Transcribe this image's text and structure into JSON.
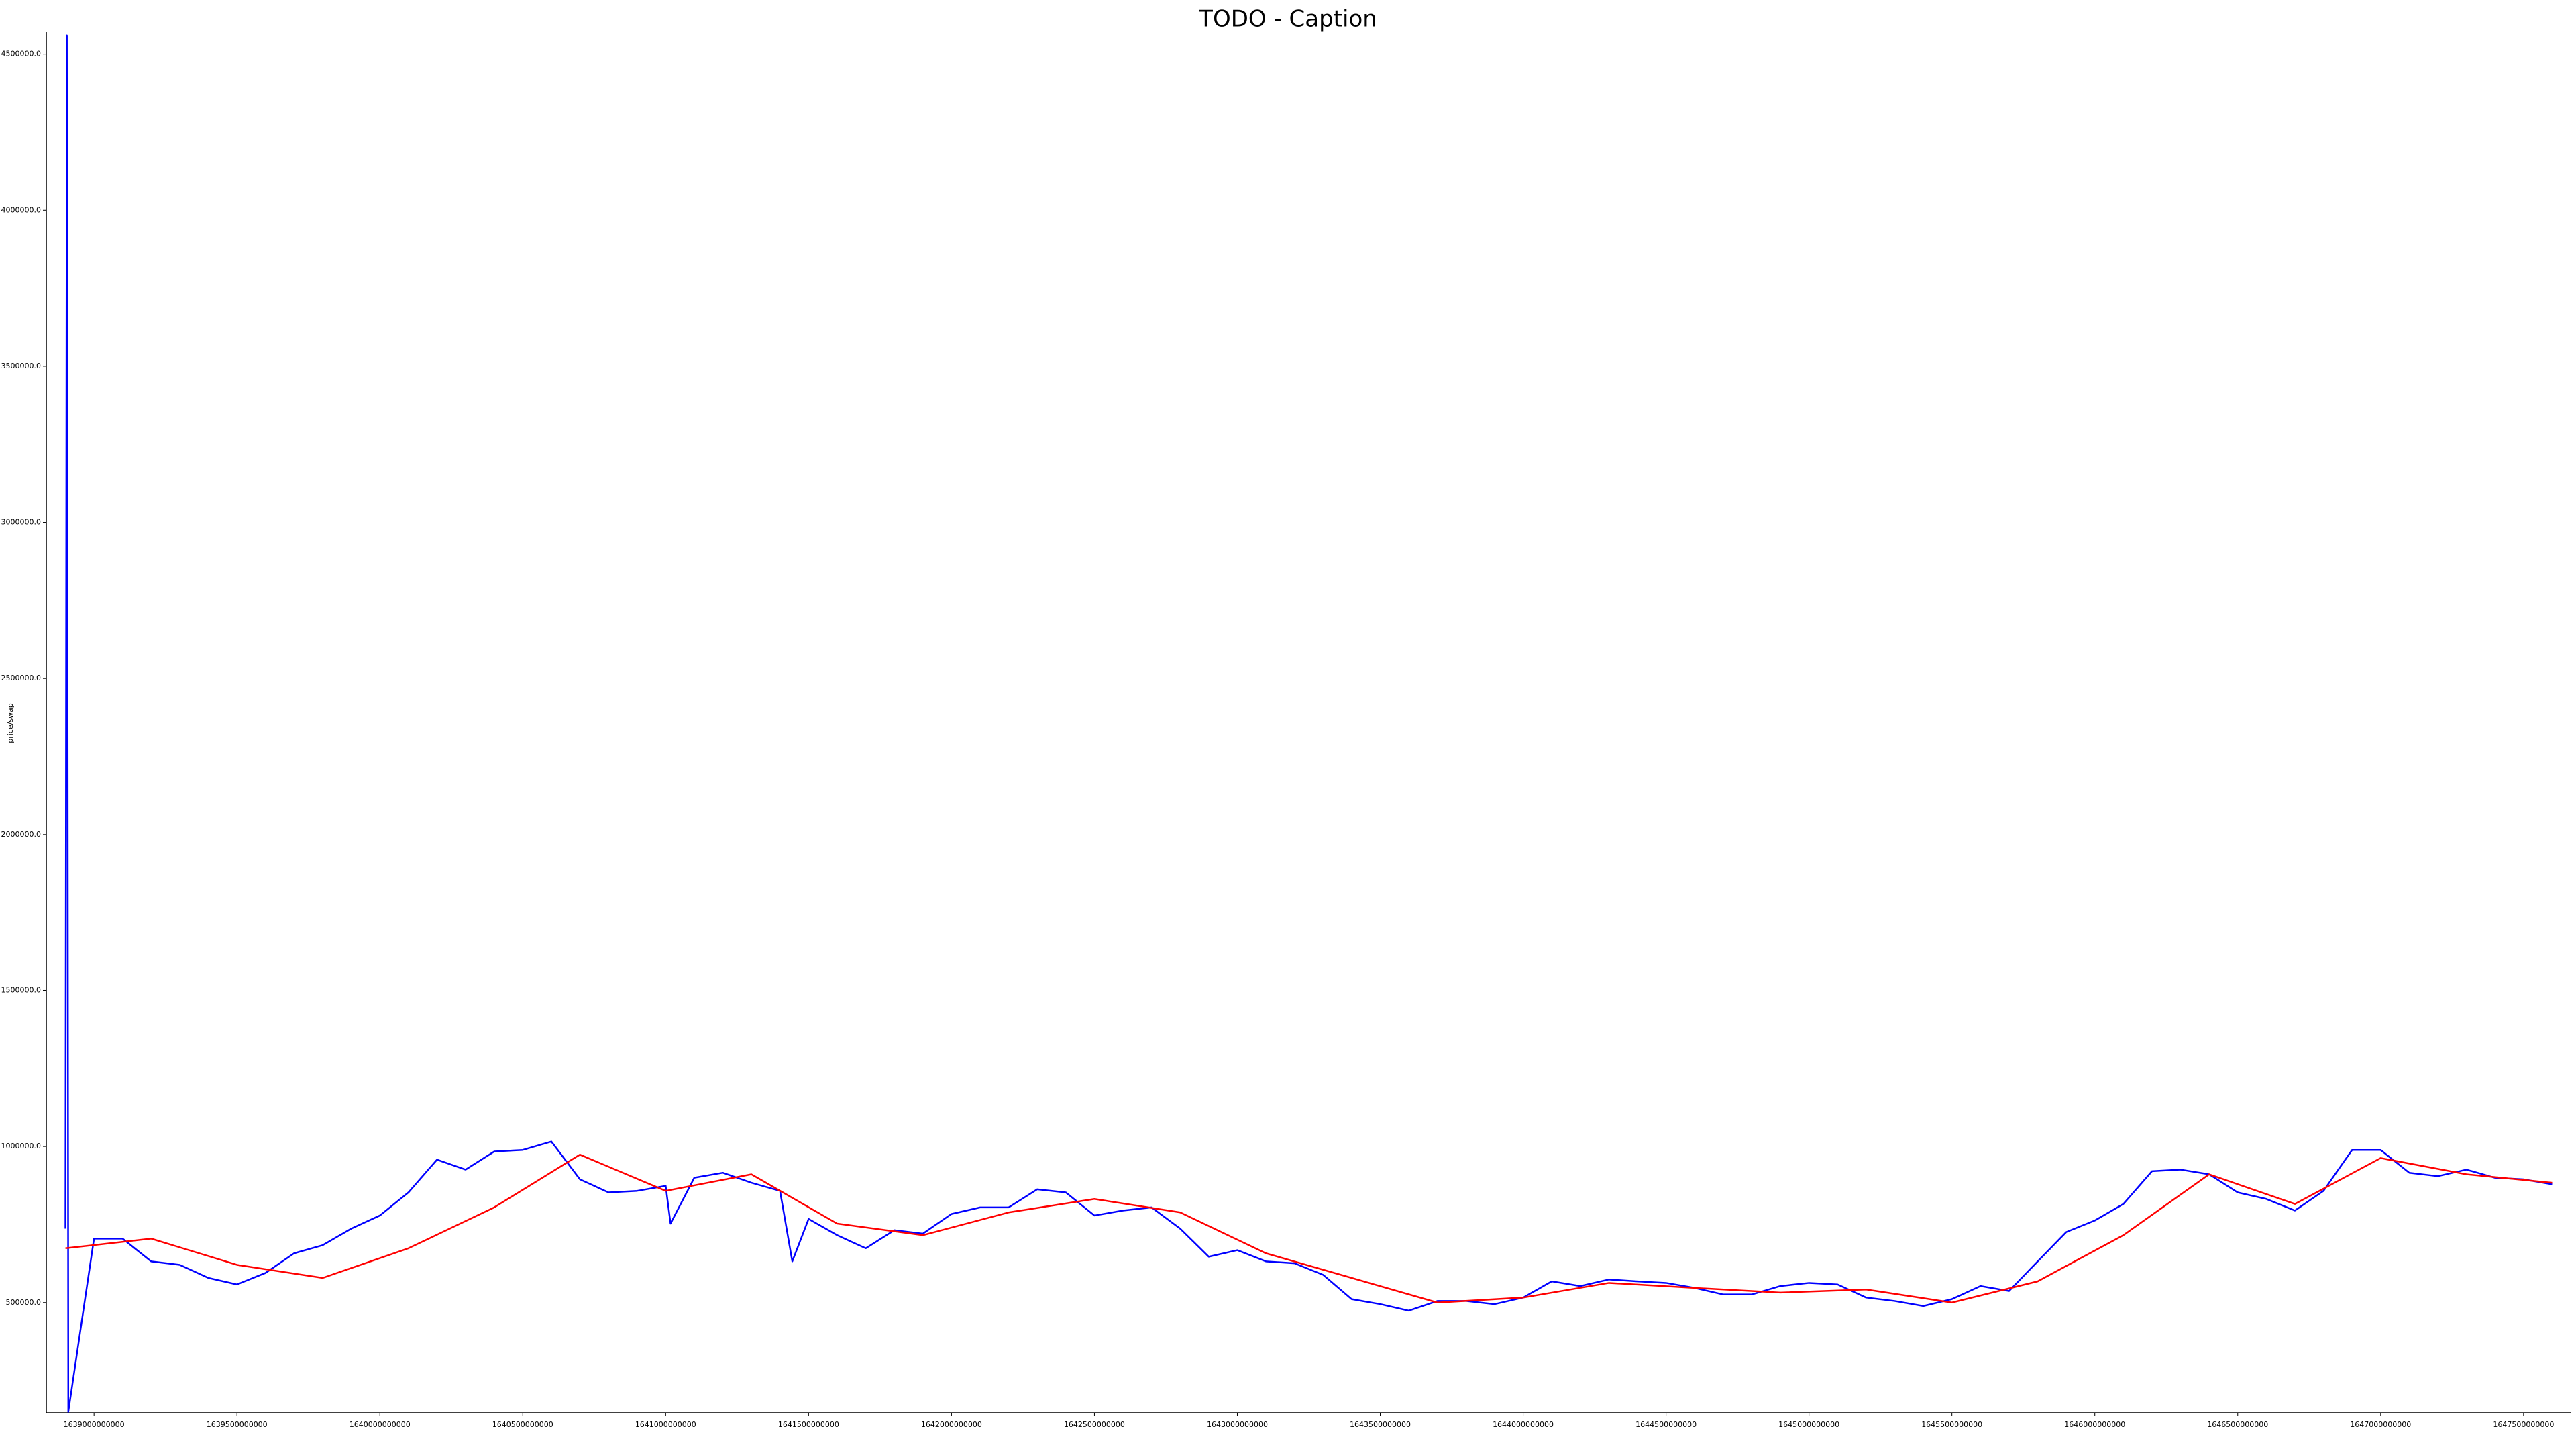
{
  "chart_data": {
    "type": "line",
    "title": "TODO - Caption",
    "ylabel": "price/swap",
    "xlim": [
      1638833000000,
      1647667000000
    ],
    "xticks": [
      1639000000000,
      1639500000000,
      1640000000000,
      1640500000000,
      1641000000000,
      1641500000000,
      1642000000000,
      1642500000000,
      1643000000000,
      1643500000000,
      1644000000000,
      1644500000000,
      1645000000000,
      1645500000000,
      1646000000000,
      1646500000000,
      1647000000000,
      1647500000000
    ],
    "ylim": [
      147000,
      4568000
    ],
    "yticks": [
      {
        "value": 500000,
        "label": "500000.0"
      },
      {
        "value": 1000000,
        "label": "1000000.0"
      },
      {
        "value": 1500000,
        "label": "1500000.0"
      },
      {
        "value": 2000000,
        "label": "2000000.0"
      },
      {
        "value": 2500000,
        "label": "2500000.0"
      },
      {
        "value": 3000000,
        "label": "3000000.0"
      },
      {
        "value": 3500000,
        "label": "3500000.0"
      },
      {
        "value": 4000000,
        "label": "4000000.0"
      },
      {
        "value": 4500000,
        "label": "4500000.0"
      }
    ],
    "grid": false,
    "series": [
      {
        "color": "#0000ff",
        "x": [
          1638900000000,
          1638905000000,
          1638910000000,
          1639000000000,
          1639100000000,
          1639200000000,
          1639300000000,
          1639400000000,
          1639500000000,
          1639600000000,
          1639700000000,
          1639800000000,
          1639900000000,
          1640000000000,
          1640100000000,
          1640200000000,
          1640300000000,
          1640400000000,
          1640500000000,
          1640600000000,
          1640700000000,
          1640800000000,
          1640900000000,
          1641000000000,
          1641017000000,
          1641100000000,
          1641200000000,
          1641300000000,
          1641400000000,
          1641443000000,
          1641500000000,
          1641600000000,
          1641700000000,
          1641800000000,
          1641900000000,
          1642000000000,
          1642100000000,
          1642200000000,
          1642300000000,
          1642400000000,
          1642500000000,
          1642600000000,
          1642700000000,
          1642800000000,
          1642900000000,
          1643000000000,
          1643100000000,
          1643200000000,
          1643300000000,
          1643400000000,
          1643500000000,
          1643600000000,
          1643700000000,
          1643800000000,
          1643900000000,
          1644000000000,
          1644100000000,
          1644200000000,
          1644300000000,
          1644400000000,
          1644500000000,
          1644600000000,
          1644700000000,
          1644800000000,
          1644900000000,
          1645000000000,
          1645100000000,
          1645200000000,
          1645300000000,
          1645400000000,
          1645500000000,
          1645600000000,
          1645700000000,
          1645800000000,
          1645900000000,
          1646000000000,
          1646100000000,
          1646200000000,
          1646300000000,
          1646400000000,
          1646500000000,
          1646600000000,
          1646700000000,
          1646800000000,
          1646900000000,
          1647000000000,
          1647100000000,
          1647200000000,
          1647300000000,
          1647400000000,
          1647500000000,
          1647600000000
        ],
        "values": [
          737000,
          4560000,
          150000,
          705000,
          705000,
          632000,
          621000,
          579000,
          558000,
          595000,
          658000,
          684000,
          737000,
          779000,
          853000,
          958000,
          926000,
          984000,
          989000,
          1016000,
          895000,
          853000,
          858000,
          874000,
          753000,
          900000,
          916000,
          884000,
          858000,
          632000,
          768000,
          716000,
          674000,
          732000,
          721000,
          784000,
          805000,
          805000,
          863000,
          853000,
          779000,
          795000,
          805000,
          737000,
          647000,
          668000,
          632000,
          626000,
          589000,
          511000,
          495000,
          474000,
          505000,
          505000,
          495000,
          516000,
          568000,
          553000,
          574000,
          568000,
          563000,
          547000,
          526000,
          526000,
          553000,
          563000,
          558000,
          516000,
          505000,
          489000,
          511000,
          553000,
          537000,
          632000,
          726000,
          763000,
          816000,
          921000,
          926000,
          911000,
          853000,
          832000,
          795000,
          858000,
          989000,
          989000,
          916000,
          905000,
          926000,
          900000,
          895000,
          879000
        ]
      },
      {
        "color": "#ff0000",
        "x": [
          1638900000000,
          1639200000000,
          1639500000000,
          1639800000000,
          1640100000000,
          1640400000000,
          1640700000000,
          1641000000000,
          1641300000000,
          1641600000000,
          1641900000000,
          1642200000000,
          1642500000000,
          1642800000000,
          1643100000000,
          1643400000000,
          1643700000000,
          1644000000000,
          1644300000000,
          1644600000000,
          1644900000000,
          1645200000000,
          1645500000000,
          1645800000000,
          1646100000000,
          1646400000000,
          1646700000000,
          1647000000000,
          1647300000000,
          1647600000000
        ],
        "values": [
          674000,
          705000,
          621000,
          579000,
          674000,
          805000,
          974000,
          858000,
          911000,
          753000,
          716000,
          789000,
          832000,
          789000,
          658000,
          579000,
          500000,
          516000,
          563000,
          547000,
          532000,
          542000,
          500000,
          568000,
          716000,
          911000,
          816000,
          963000,
          911000,
          884000
        ]
      }
    ]
  }
}
